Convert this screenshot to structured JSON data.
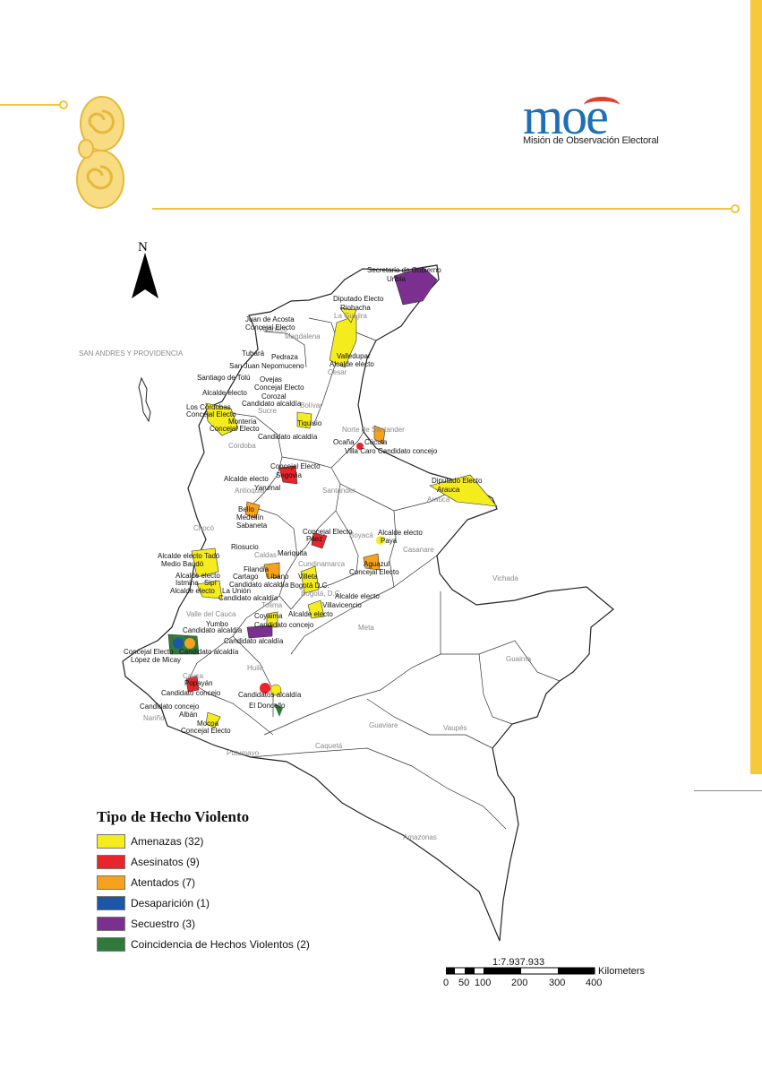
{
  "logo": {
    "wordmark": "moe",
    "subtitle": "Misión de Observación Electoral"
  },
  "map": {
    "north_label": "N",
    "region_labels": [
      {
        "text": "SAN ANDRES Y PROVIDENCIA"
      },
      {
        "text": "La Guajira"
      },
      {
        "text": "Atlántico"
      },
      {
        "text": "Magdalena"
      },
      {
        "text": "Cesar"
      },
      {
        "text": "Sucre"
      },
      {
        "text": "Bolívar"
      },
      {
        "text": "Córdoba"
      },
      {
        "text": "Norte de Santander"
      },
      {
        "text": "Antioquia"
      },
      {
        "text": "Santander"
      },
      {
        "text": "Arauca"
      },
      {
        "text": "Chocó"
      },
      {
        "text": "Boyacá"
      },
      {
        "text": "Casanare"
      },
      {
        "text": "Caldas"
      },
      {
        "text": "Cundinamarca"
      },
      {
        "text": "Bogotá, D.C."
      },
      {
        "text": "Tolima"
      },
      {
        "text": "Vichada"
      },
      {
        "text": "Valle del Cauca"
      },
      {
        "text": "Meta"
      },
      {
        "text": "Guainía"
      },
      {
        "text": "Huila"
      },
      {
        "text": "Cauca"
      },
      {
        "text": "Guaviare"
      },
      {
        "text": "Nariño"
      },
      {
        "text": "Vaupés"
      },
      {
        "text": "Caquetá"
      },
      {
        "text": "Putumayo"
      },
      {
        "text": "Amazonas"
      }
    ],
    "event_labels": [
      {
        "text": "Secretario de Gobierno"
      },
      {
        "text": "Uribia"
      },
      {
        "text": "Diputado Electo"
      },
      {
        "text": "Riohacha"
      },
      {
        "text": "Juan de Acosta"
      },
      {
        "text": "Concejal Electo"
      },
      {
        "text": "Valledupar"
      },
      {
        "text": "Alcalde electo"
      },
      {
        "text": "Tubará"
      },
      {
        "text": "Pedraza"
      },
      {
        "text": "San Juan Nepomuceno"
      },
      {
        "text": "Santiago de Tolú"
      },
      {
        "text": "Ovejas"
      },
      {
        "text": "Concejal Electo"
      },
      {
        "text": "Alcalde electo"
      },
      {
        "text": "Corozal"
      },
      {
        "text": "Candidato alcaldía"
      },
      {
        "text": "Los Córdobas"
      },
      {
        "text": "Concejal Electo"
      },
      {
        "text": "Montería"
      },
      {
        "text": "Concejal Electo"
      },
      {
        "text": "Tiquisio"
      },
      {
        "text": "Candidato alcaldía"
      },
      {
        "text": "Ocaña"
      },
      {
        "text": "Cúcuta"
      },
      {
        "text": "Villa Caro"
      },
      {
        "text": "Candidato concejo"
      },
      {
        "text": "Concejal Electo"
      },
      {
        "text": "Segovia"
      },
      {
        "text": "Alcalde electo"
      },
      {
        "text": "Yarumal"
      },
      {
        "text": "Diputado Electo"
      },
      {
        "text": "Arauca"
      },
      {
        "text": "Bello"
      },
      {
        "text": "Medellín"
      },
      {
        "text": "Sabaneta"
      },
      {
        "text": "Concejal Electo"
      },
      {
        "text": "Páez"
      },
      {
        "text": "Alcalde electo"
      },
      {
        "text": "Paya"
      },
      {
        "text": "Riosucio"
      },
      {
        "text": "Mariquita"
      },
      {
        "text": "Alcalde electo"
      },
      {
        "text": "Tadó"
      },
      {
        "text": "Medio Baudó"
      },
      {
        "text": "Aguazul"
      },
      {
        "text": "Concejal Electo"
      },
      {
        "text": "Filandia"
      },
      {
        "text": "Líbano"
      },
      {
        "text": "Villeta"
      },
      {
        "text": "Alcalde electo"
      },
      {
        "text": "Cartago"
      },
      {
        "text": "Istmina"
      },
      {
        "text": "Sipí"
      },
      {
        "text": "Candidato alcaldía"
      },
      {
        "text": "Alcalde electo"
      },
      {
        "text": "La Unión"
      },
      {
        "text": "Bogotá D.C."
      },
      {
        "text": "Alcalde electo"
      },
      {
        "text": "Candidato alcaldía"
      },
      {
        "text": "Villavicencio"
      },
      {
        "text": "Coyaima"
      },
      {
        "text": "Alcalde electo"
      },
      {
        "text": "Yumbo"
      },
      {
        "text": "Candidato concejo"
      },
      {
        "text": "Candidato alcaldía"
      },
      {
        "text": "Candidato alcaldía"
      },
      {
        "text": "Concejal Electo"
      },
      {
        "text": "Candidato alcaldía"
      },
      {
        "text": "López de Micay"
      },
      {
        "text": "Popayán"
      },
      {
        "text": "Candidato concejo"
      },
      {
        "text": "Candidatos alcaldía"
      },
      {
        "text": "El Doncello"
      },
      {
        "text": "Candidato concejo"
      },
      {
        "text": "Albán"
      },
      {
        "text": "Mocoa"
      },
      {
        "text": "Concejal Electo"
      }
    ]
  },
  "legend": {
    "title": "Tipo de Hecho Violento",
    "items": [
      {
        "label": "Amenazas (32)",
        "color": "#f4ec1c"
      },
      {
        "label": "Asesinatos (9)",
        "color": "#e8252a"
      },
      {
        "label": "Atentados (7)",
        "color": "#f6a21e"
      },
      {
        "label": "Desaparición (1)",
        "color": "#1d56a6"
      },
      {
        "label": "Secuestro (3)",
        "color": "#7b2f91"
      },
      {
        "label": "Coincidencia de Hechos Violentos (2)",
        "color": "#2f7a3a"
      }
    ]
  },
  "scale": {
    "ratio": "1:7.937.933",
    "units": "Kilometers",
    "ticks": [
      "0",
      "50",
      "100",
      "200",
      "300",
      "400"
    ]
  }
}
